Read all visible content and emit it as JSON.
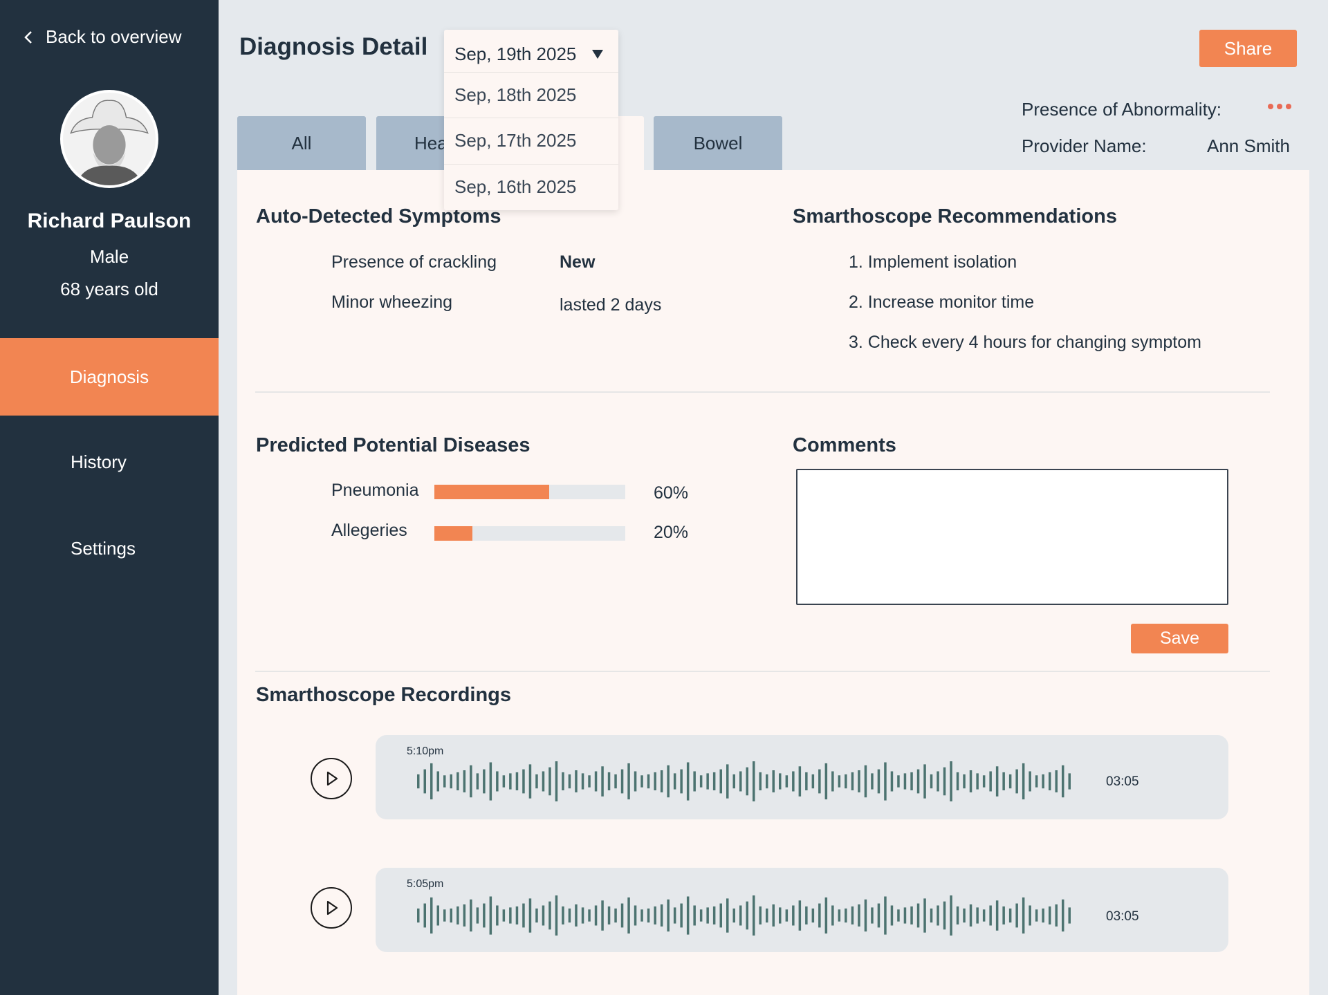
{
  "sidebar": {
    "back_label": "Back to overview",
    "patient": {
      "name": "Richard Paulson",
      "sex": "Male",
      "age": "68 years old"
    },
    "nav": {
      "diagnosis": "Diagnosis",
      "history": "History",
      "settings": "Settings"
    }
  },
  "header": {
    "title": "Diagnosis Detail",
    "share_label": "Share",
    "abnormality_label": "Presence of Abnormality:",
    "provider_label": "Provider Name:",
    "provider_name": "Ann Smith"
  },
  "date_dropdown": {
    "selected": "Sep, 19th 2025",
    "options": [
      "Sep, 18th 2025",
      "Sep, 17th 2025",
      "Sep, 16th 2025"
    ]
  },
  "tabs": {
    "all": "All",
    "heart": "Hea",
    "bowel": "Bowel"
  },
  "symptoms": {
    "title": "Auto-Detected Symptoms",
    "items": [
      {
        "name": "Presence of crackling",
        "status": "New"
      },
      {
        "name": "Minor wheezing",
        "status": "lasted 2 days"
      }
    ]
  },
  "recommendations": {
    "title": "Smarthoscope Recommendations",
    "items": [
      "1. Implement isolation",
      "2. Increase monitor time",
      "3. Check every 4 hours for changing symptom"
    ]
  },
  "diseases": {
    "title": "Predicted Potential Diseases",
    "items": [
      {
        "name": "Pneumonia",
        "percent_label": "60%",
        "value": 0.6
      },
      {
        "name": "Allegeries",
        "percent_label": "20%",
        "value": 0.2
      }
    ]
  },
  "comments": {
    "title": "Comments",
    "value": "",
    "save_label": "Save"
  },
  "recordings": {
    "title": "Smarthoscope Recordings",
    "items": [
      {
        "time": "5:10pm",
        "duration": "03:05"
      },
      {
        "time": "5:05pm",
        "duration": "03:05"
      }
    ]
  },
  "colors": {
    "accent": "#f28552",
    "sidebar": "#22313f",
    "tab": "#a7b9cb",
    "panel": "#fdf6f3",
    "waveform": "#4c7370"
  }
}
